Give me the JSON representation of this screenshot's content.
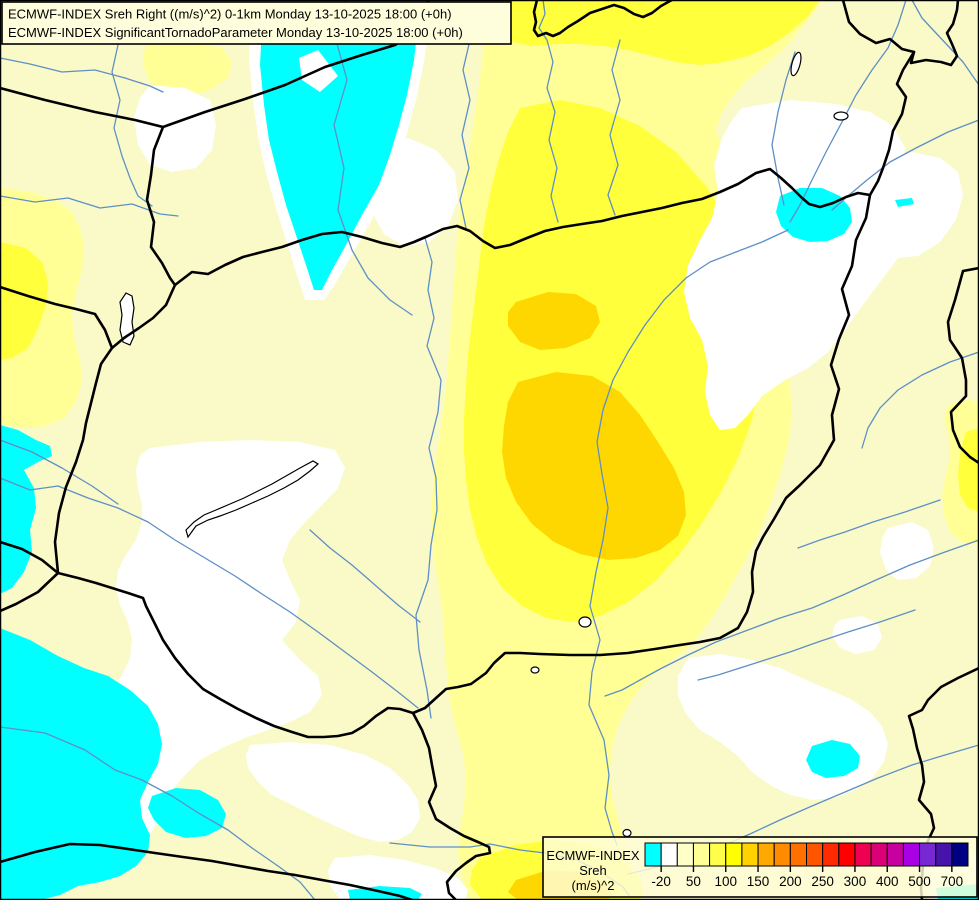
{
  "title_bar": {
    "line1": "ECMWF-INDEX Sreh Right ((m/s)^2) 0-1km Monday 13-10-2025 18:00 (+0h)",
    "line2": "ECMWF-INDEX SignificantTornadoParameter Monday 13-10-2025 18:00 (+0h)"
  },
  "legend": {
    "title_line1": "ECMWF-INDEX",
    "title_line2": "Sreh",
    "title_line3": "(m/s)^2",
    "tick_labels": [
      "-20",
      "50",
      "100",
      "150",
      "200",
      "250",
      "300",
      "400",
      "500",
      "700"
    ],
    "palette": [
      "#00FFFF",
      "#FFFFFF",
      "#FFFFC8",
      "#FFFF96",
      "#FFFF4B",
      "#FFFF00",
      "#FFD200",
      "#FFA800",
      "#FF8C00",
      "#FF7000",
      "#FF5400",
      "#FF2A00",
      "#FF0000",
      "#F00050",
      "#DC0078",
      "#C800A0",
      "#AA00E6",
      "#7828D2",
      "#4614AA",
      "#000082"
    ]
  },
  "map": {
    "description": "ECMWF storm-relative helicity (Sreh) filled contour map over Hungary and surrounding countries",
    "colors": {
      "background": "#FAFAC8",
      "negative_cyan": "#00FFFF",
      "near_zero_white": "#FFFFFF",
      "light_yellow": "#FFFF96",
      "yellow": "#FFFF3C",
      "gold": "#FFD700",
      "river_blue": "#5E8FC5",
      "border_black": "#000000"
    }
  }
}
